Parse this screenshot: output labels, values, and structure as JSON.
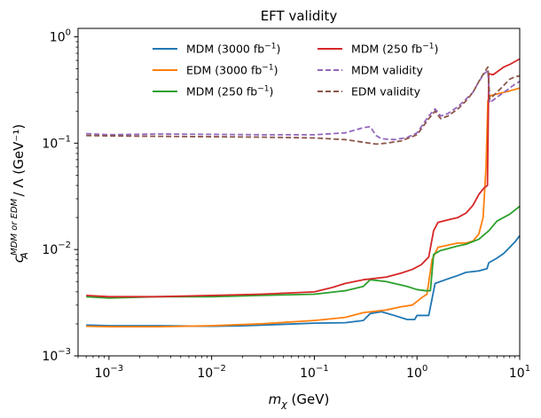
{
  "chart_data": {
    "type": "line",
    "title": "EFT validity",
    "xlabel": "m_χ (GeV)",
    "ylabel": "c_A^{MDM or EDM} / Λ (GeV⁻¹)",
    "xscale": "log",
    "yscale": "log",
    "xlim": [
      0.0005,
      10
    ],
    "ylim": [
      0.001,
      1.2
    ],
    "grid": false,
    "legend_position": "top-center",
    "x_ticks": [
      {
        "value": 0.001,
        "base": "10",
        "exp": "−3"
      },
      {
        "value": 0.01,
        "base": "10",
        "exp": "−2"
      },
      {
        "value": 0.1,
        "base": "10",
        "exp": "−1"
      },
      {
        "value": 1,
        "base": "10",
        "exp": "0"
      },
      {
        "value": 10,
        "base": "10",
        "exp": "1"
      }
    ],
    "y_ticks": [
      {
        "value": 0.001,
        "base": "10",
        "exp": "−3"
      },
      {
        "value": 0.01,
        "base": "10",
        "exp": "−2"
      },
      {
        "value": 0.1,
        "base": "10",
        "exp": "−1"
      },
      {
        "value": 1,
        "base": "10",
        "exp": "0"
      }
    ],
    "series": [
      {
        "name": "MDM (3000 fb⁻¹)",
        "color": "#1f77b4",
        "dash": "solid",
        "legend_col": 0,
        "points": [
          [
            0.0006,
            0.00195
          ],
          [
            0.001,
            0.00192
          ],
          [
            0.003,
            0.00192
          ],
          [
            0.01,
            0.0019
          ],
          [
            0.02,
            0.00192
          ],
          [
            0.05,
            0.00198
          ],
          [
            0.1,
            0.00203
          ],
          [
            0.2,
            0.00205
          ],
          [
            0.3,
            0.00215
          ],
          [
            0.35,
            0.0025
          ],
          [
            0.45,
            0.0026
          ],
          [
            0.6,
            0.0024
          ],
          [
            0.8,
            0.0022
          ],
          [
            0.95,
            0.0022
          ],
          [
            1.0,
            0.0024
          ],
          [
            1.3,
            0.0024
          ],
          [
            1.5,
            0.0048
          ],
          [
            2.0,
            0.0053
          ],
          [
            2.5,
            0.0057
          ],
          [
            3.0,
            0.0061
          ],
          [
            4.0,
            0.0063
          ],
          [
            4.8,
            0.0066
          ],
          [
            5.0,
            0.0075
          ],
          [
            6.0,
            0.0083
          ],
          [
            7.0,
            0.0092
          ],
          [
            8.0,
            0.0105
          ],
          [
            9.0,
            0.0118
          ],
          [
            10.0,
            0.0135
          ]
        ]
      },
      {
        "name": "EDM (3000 fb⁻¹)",
        "color": "#ff7f0e",
        "dash": "solid",
        "legend_col": 0,
        "points": [
          [
            0.0006,
            0.0019
          ],
          [
            0.001,
            0.00188
          ],
          [
            0.003,
            0.00188
          ],
          [
            0.01,
            0.00192
          ],
          [
            0.03,
            0.002
          ],
          [
            0.1,
            0.00215
          ],
          [
            0.2,
            0.0023
          ],
          [
            0.3,
            0.00255
          ],
          [
            0.5,
            0.0027
          ],
          [
            0.7,
            0.0029
          ],
          [
            0.9,
            0.003
          ],
          [
            1.1,
            0.0035
          ],
          [
            1.25,
            0.0038
          ],
          [
            1.4,
            0.008
          ],
          [
            1.6,
            0.0105
          ],
          [
            2.0,
            0.011
          ],
          [
            2.5,
            0.0115
          ],
          [
            3.0,
            0.0115
          ],
          [
            3.5,
            0.012
          ],
          [
            4.0,
            0.014
          ],
          [
            4.4,
            0.02
          ],
          [
            4.7,
            0.06
          ],
          [
            4.9,
            0.25
          ],
          [
            5.2,
            0.28
          ],
          [
            6.0,
            0.29
          ],
          [
            8.0,
            0.31
          ],
          [
            10.0,
            0.33
          ]
        ]
      },
      {
        "name": "MDM (250 fb⁻¹)",
        "color": "#2ca02c",
        "dash": "solid",
        "legend_col": 0,
        "points": [
          [
            0.0006,
            0.0036
          ],
          [
            0.001,
            0.0035
          ],
          [
            0.003,
            0.0036
          ],
          [
            0.01,
            0.0036
          ],
          [
            0.03,
            0.0037
          ],
          [
            0.1,
            0.0038
          ],
          [
            0.2,
            0.0041
          ],
          [
            0.3,
            0.0045
          ],
          [
            0.35,
            0.0052
          ],
          [
            0.5,
            0.005
          ],
          [
            0.6,
            0.0048
          ],
          [
            0.8,
            0.0045
          ],
          [
            1.0,
            0.0042
          ],
          [
            1.2,
            0.0041
          ],
          [
            1.35,
            0.0041
          ],
          [
            1.45,
            0.009
          ],
          [
            1.7,
            0.0098
          ],
          [
            2.0,
            0.0102
          ],
          [
            2.5,
            0.0108
          ],
          [
            3.0,
            0.0112
          ],
          [
            4.0,
            0.0125
          ],
          [
            5.0,
            0.015
          ],
          [
            6.0,
            0.0185
          ],
          [
            8.0,
            0.0215
          ],
          [
            10.0,
            0.0255
          ]
        ]
      },
      {
        "name": "MDM (250 fb⁻¹)",
        "color": "#d62728",
        "dash": "solid",
        "legend_col": 1,
        "points": [
          [
            0.0006,
            0.0037
          ],
          [
            0.001,
            0.0036
          ],
          [
            0.003,
            0.0036
          ],
          [
            0.01,
            0.0037
          ],
          [
            0.03,
            0.0038
          ],
          [
            0.1,
            0.004
          ],
          [
            0.15,
            0.0044
          ],
          [
            0.2,
            0.0048
          ],
          [
            0.3,
            0.0052
          ],
          [
            0.5,
            0.0055
          ],
          [
            0.7,
            0.006
          ],
          [
            0.9,
            0.0065
          ],
          [
            1.1,
            0.0072
          ],
          [
            1.3,
            0.0085
          ],
          [
            1.45,
            0.015
          ],
          [
            1.6,
            0.018
          ],
          [
            2.0,
            0.019
          ],
          [
            2.5,
            0.02
          ],
          [
            3.0,
            0.022
          ],
          [
            3.5,
            0.026
          ],
          [
            4.0,
            0.033
          ],
          [
            4.5,
            0.038
          ],
          [
            4.85,
            0.04
          ],
          [
            5.0,
            0.45
          ],
          [
            5.5,
            0.44
          ],
          [
            7.0,
            0.52
          ],
          [
            8.0,
            0.55
          ],
          [
            10.0,
            0.62
          ]
        ]
      },
      {
        "name": "MDM validity",
        "color": "#9467bd",
        "dash": "dashed",
        "legend_col": 1,
        "points": [
          [
            0.0006,
            0.123
          ],
          [
            0.001,
            0.12
          ],
          [
            0.003,
            0.122
          ],
          [
            0.01,
            0.121
          ],
          [
            0.03,
            0.12
          ],
          [
            0.1,
            0.12
          ],
          [
            0.2,
            0.125
          ],
          [
            0.3,
            0.14
          ],
          [
            0.35,
            0.143
          ],
          [
            0.4,
            0.118
          ],
          [
            0.45,
            0.11
          ],
          [
            0.6,
            0.108
          ],
          [
            0.8,
            0.113
          ],
          [
            1.0,
            0.125
          ],
          [
            1.3,
            0.18
          ],
          [
            1.5,
            0.21
          ],
          [
            1.7,
            0.18
          ],
          [
            2.0,
            0.19
          ],
          [
            2.5,
            0.22
          ],
          [
            3.0,
            0.26
          ],
          [
            3.5,
            0.3
          ],
          [
            4.0,
            0.38
          ],
          [
            4.5,
            0.45
          ],
          [
            4.9,
            0.48
          ],
          [
            5.1,
            0.24
          ],
          [
            6.0,
            0.27
          ],
          [
            7.0,
            0.3
          ],
          [
            8.0,
            0.33
          ],
          [
            9.0,
            0.36
          ],
          [
            10.0,
            0.38
          ]
        ]
      },
      {
        "name": "EDM validity",
        "color": "#8c564b",
        "dash": "dashed",
        "legend_col": 1,
        "points": [
          [
            0.0006,
            0.118
          ],
          [
            0.001,
            0.117
          ],
          [
            0.003,
            0.116
          ],
          [
            0.01,
            0.115
          ],
          [
            0.03,
            0.114
          ],
          [
            0.1,
            0.112
          ],
          [
            0.2,
            0.108
          ],
          [
            0.3,
            0.102
          ],
          [
            0.4,
            0.098
          ],
          [
            0.5,
            0.1
          ],
          [
            0.7,
            0.105
          ],
          [
            1.0,
            0.12
          ],
          [
            1.3,
            0.17
          ],
          [
            1.5,
            0.2
          ],
          [
            1.7,
            0.17
          ],
          [
            2.0,
            0.18
          ],
          [
            2.5,
            0.21
          ],
          [
            3.0,
            0.25
          ],
          [
            3.5,
            0.3
          ],
          [
            4.0,
            0.38
          ],
          [
            4.5,
            0.46
          ],
          [
            4.9,
            0.52
          ],
          [
            5.1,
            0.26
          ],
          [
            6.0,
            0.3
          ],
          [
            7.0,
            0.35
          ],
          [
            8.0,
            0.4
          ],
          [
            9.0,
            0.42
          ],
          [
            10.0,
            0.43
          ]
        ]
      }
    ]
  }
}
